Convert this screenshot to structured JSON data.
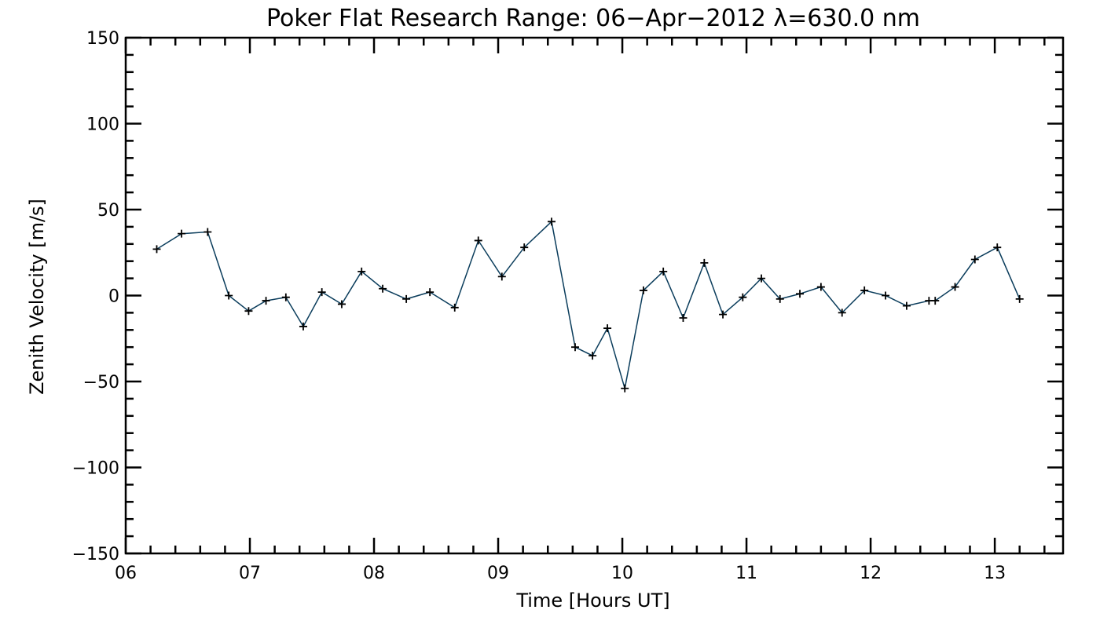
{
  "chart_data": {
    "type": "line",
    "title": "Poker Flat Research Range: 06−Apr−2012 λ=630.0 nm",
    "xlabel": "Time [Hours UT]",
    "ylabel": "Zenith Velocity [m/s]",
    "xlim": [
      6.0,
      13.55
    ],
    "ylim": [
      -150,
      150
    ],
    "x_ticks": [
      6,
      7,
      8,
      9,
      10,
      11,
      12,
      13
    ],
    "x_tick_labels": [
      "06",
      "07",
      "08",
      "09",
      "10",
      "11",
      "12",
      "13"
    ],
    "y_ticks": [
      -150,
      -100,
      -50,
      0,
      50,
      100,
      150
    ],
    "y_tick_labels": [
      "−150",
      "−100",
      "−50",
      "0",
      "50",
      "100",
      "150"
    ],
    "grid": false,
    "line_color": "#0b3d5c",
    "marker": "plus",
    "series": [
      {
        "x": [
          6.25,
          6.45,
          6.66,
          6.83,
          6.99,
          7.13,
          7.29,
          7.43,
          7.58,
          7.74,
          7.9,
          8.07,
          8.26,
          8.45,
          8.65,
          8.84,
          9.03,
          9.21,
          9.43,
          9.62,
          9.76,
          9.88,
          10.02,
          10.17,
          10.33,
          10.49,
          10.66,
          10.81,
          10.97,
          11.12,
          11.27,
          11.43,
          11.6,
          11.77,
          11.95,
          12.12,
          12.29,
          12.47,
          12.52,
          12.68,
          12.84,
          13.02,
          13.2
        ],
        "values": [
          27,
          36,
          37,
          0,
          -9,
          -3,
          -1,
          -18,
          2,
          -5,
          14,
          4,
          -2,
          2,
          -7,
          32,
          11,
          28,
          43,
          -30,
          -35,
          -19,
          -54,
          3,
          14,
          -13,
          19,
          -11,
          -1,
          10,
          -2,
          1,
          5,
          -10,
          3,
          0,
          -6,
          -3,
          -3,
          5,
          21,
          28,
          -2
        ]
      }
    ]
  }
}
